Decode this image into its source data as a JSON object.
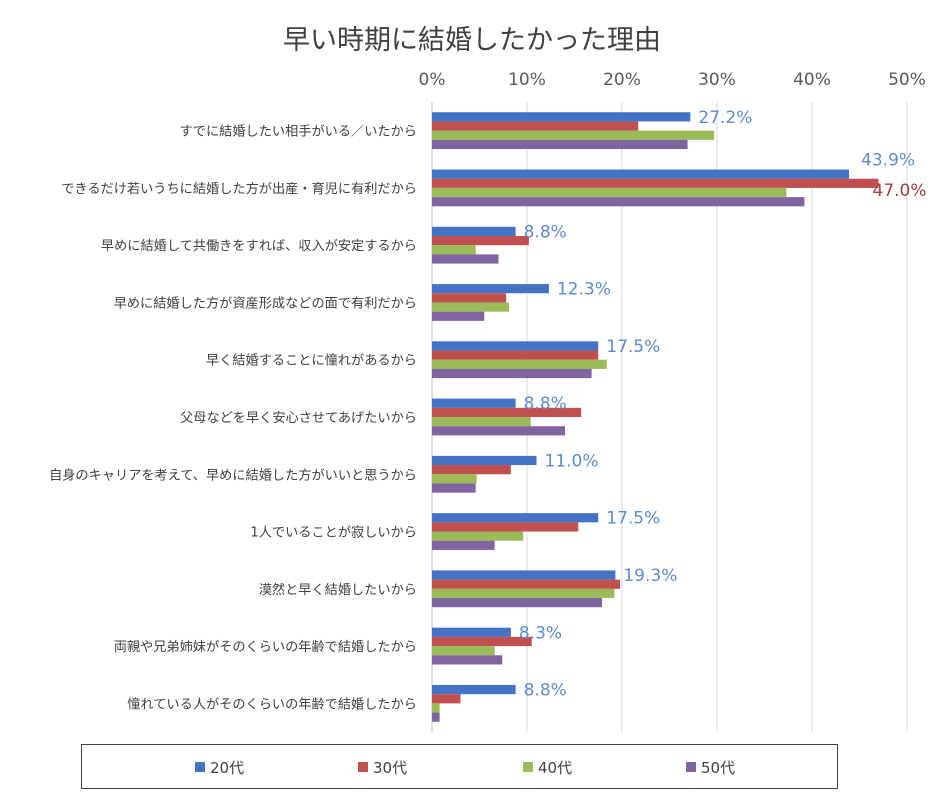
{
  "chart_data": {
    "type": "bar",
    "orientation": "horizontal",
    "title": "早い時期に結婚したかった理由",
    "xlabel": "",
    "ylabel": "",
    "xlim": [
      0,
      50
    ],
    "x_ticks": [
      "0%",
      "10%",
      "20%",
      "30%",
      "40%",
      "50%"
    ],
    "x_axis_position": "top",
    "grid": true,
    "legend_position": "bottom",
    "categories": [
      "すでに結婚したい相手がいる／いたから",
      "できるだけ若いうちに結婚した方が出産・育児に有利だから",
      "早めに結婚して共働きをすれば、収入が安定するから",
      "早めに結婚した方が資産形成などの面で有利だから",
      "早く結婚することに憧れがあるから",
      "父母などを早く安心させてあげたいから",
      "自身のキャリアを考えて、早めに結婚した方がいいと思うから",
      "1人でいることが寂しいから",
      "漠然と早く結婚したいから",
      "両親や兄弟姉妹がそのくらいの年齢で結婚したから",
      "憧れている人がそのくらいの年齢で結婚したから"
    ],
    "series": [
      {
        "name": "20代",
        "color": "#4472C4",
        "values": [
          27.2,
          43.9,
          8.8,
          12.3,
          17.5,
          8.8,
          11.0,
          17.5,
          19.3,
          8.3,
          8.8
        ]
      },
      {
        "name": "30代",
        "color": "#C0504D",
        "values": [
          21.7,
          47.0,
          10.2,
          7.8,
          17.5,
          15.7,
          8.3,
          15.4,
          19.8,
          10.5,
          3.0
        ]
      },
      {
        "name": "40代",
        "color": "#9BBB59",
        "values": [
          29.7,
          37.3,
          4.6,
          8.1,
          18.4,
          10.4,
          4.7,
          9.6,
          19.2,
          6.6,
          0.8
        ]
      },
      {
        "name": "50代",
        "color": "#8064A2",
        "values": [
          26.9,
          39.2,
          7.0,
          5.5,
          16.8,
          14.0,
          4.6,
          6.6,
          17.9,
          7.4,
          0.8
        ]
      }
    ],
    "data_labels": [
      {
        "category_index": 0,
        "series_index": 0,
        "text": "27.2%",
        "color": "#5B8BD0"
      },
      {
        "category_index": 1,
        "series_index": 0,
        "text": "43.9%",
        "color": "#5B8BD0"
      },
      {
        "category_index": 1,
        "series_index": 1,
        "text": "47.0%",
        "color": "#A0403D"
      },
      {
        "category_index": 2,
        "series_index": 0,
        "text": "8.8%",
        "color": "#5B8BD0"
      },
      {
        "category_index": 3,
        "series_index": 0,
        "text": "12.3%",
        "color": "#5B8BD0"
      },
      {
        "category_index": 4,
        "series_index": 0,
        "text": "17.5%",
        "color": "#5B8BD0"
      },
      {
        "category_index": 5,
        "series_index": 0,
        "text": "8.8%",
        "color": "#5B8BD0"
      },
      {
        "category_index": 6,
        "series_index": 0,
        "text": "11.0%",
        "color": "#5B8BD0"
      },
      {
        "category_index": 7,
        "series_index": 0,
        "text": "17.5%",
        "color": "#5B8BD0"
      },
      {
        "category_index": 8,
        "series_index": 0,
        "text": "19.3%",
        "color": "#5B8BD0"
      },
      {
        "category_index": 9,
        "series_index": 0,
        "text": "8.3%",
        "color": "#5B8BD0"
      },
      {
        "category_index": 10,
        "series_index": 0,
        "text": "8.8%",
        "color": "#5B8BD0"
      }
    ]
  }
}
